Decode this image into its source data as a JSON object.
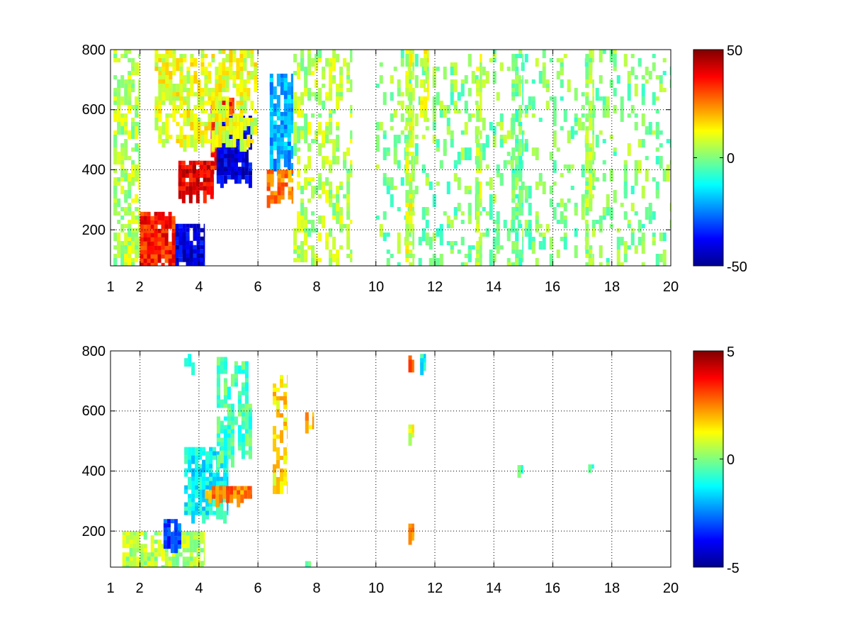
{
  "figure": {
    "background": "#ffffff"
  },
  "chart_data": [
    {
      "type": "heatmap",
      "title": "",
      "xlabel": "",
      "ylabel": "",
      "xlim": [
        1,
        20
      ],
      "ylim": [
        80,
        800
      ],
      "x_ticks": [
        1,
        2,
        4,
        6,
        8,
        10,
        12,
        14,
        16,
        18,
        20
      ],
      "x_tick_labels": [
        "1",
        "2",
        "4",
        "6",
        "8",
        "10",
        "12",
        "14",
        "16",
        "18",
        "20"
      ],
      "y_ticks": [
        200,
        400,
        600,
        800
      ],
      "y_tick_labels": [
        "200",
        "400",
        "600",
        "800"
      ],
      "grid": "dotted",
      "colormap": "jet",
      "clim": [
        -50,
        50
      ],
      "colorbar_ticks": [
        50,
        0,
        -50
      ],
      "colorbar_tick_labels": [
        "50",
        "0",
        "-50"
      ],
      "features": [
        {
          "x": [
            1.1,
            2.0
          ],
          "y": [
            80,
            800
          ],
          "value": 5,
          "coverage": 0.45
        },
        {
          "x": [
            2.0,
            3.2
          ],
          "y": [
            80,
            260
          ],
          "value": 35,
          "coverage": 0.85
        },
        {
          "x": [
            3.2,
            4.2
          ],
          "y": [
            80,
            220
          ],
          "value": -40,
          "coverage": 0.8
        },
        {
          "x": [
            3.3,
            4.5
          ],
          "y": [
            320,
            430
          ],
          "value": 40,
          "coverage": 0.9
        },
        {
          "x": [
            4.4,
            5.2
          ],
          "y": [
            400,
            640
          ],
          "value": 35,
          "coverage": 0.8
        },
        {
          "x": [
            4.6,
            5.8
          ],
          "y": [
            380,
            580
          ],
          "value": -40,
          "coverage": 0.8
        },
        {
          "x": [
            2.5,
            6.0
          ],
          "y": [
            500,
            800
          ],
          "value": 10,
          "coverage": 0.55
        },
        {
          "x": [
            6.4,
            7.2
          ],
          "y": [
            420,
            720
          ],
          "value": -20,
          "coverage": 0.65
        },
        {
          "x": [
            6.3,
            7.2
          ],
          "y": [
            310,
            400
          ],
          "value": 25,
          "coverage": 0.6
        },
        {
          "x": [
            7.2,
            9.2
          ],
          "y": [
            100,
            800
          ],
          "value": 5,
          "coverage": 0.3
        },
        {
          "x": [
            10.0,
            20.0
          ],
          "y": [
            80,
            800
          ],
          "value": 0,
          "coverage": 0.14
        },
        {
          "x": [
            11.0,
            11.3
          ],
          "y": [
            80,
            800
          ],
          "value": 8,
          "coverage": 0.55
        },
        {
          "x": [
            11.5,
            11.8
          ],
          "y": [
            600,
            800
          ],
          "value": 12,
          "coverage": 0.5
        },
        {
          "x": [
            13.4,
            13.6
          ],
          "y": [
            80,
            800
          ],
          "value": 6,
          "coverage": 0.45
        },
        {
          "x": [
            14.6,
            15.0
          ],
          "y": [
            80,
            800
          ],
          "value": -2,
          "coverage": 0.4
        },
        {
          "x": [
            17.1,
            17.4
          ],
          "y": [
            80,
            800
          ],
          "value": 3,
          "coverage": 0.55
        }
      ]
    },
    {
      "type": "heatmap",
      "title": "",
      "xlabel": "",
      "ylabel": "",
      "xlim": [
        1,
        20
      ],
      "ylim": [
        80,
        800
      ],
      "x_ticks": [
        1,
        2,
        4,
        6,
        8,
        10,
        12,
        14,
        16,
        18,
        20
      ],
      "x_tick_labels": [
        "1",
        "2",
        "4",
        "6",
        "8",
        "10",
        "12",
        "14",
        "16",
        "18",
        "20"
      ],
      "y_ticks": [
        200,
        400,
        600,
        800
      ],
      "y_tick_labels": [
        "200",
        "400",
        "600",
        "800"
      ],
      "grid": "dotted",
      "colormap": "jet",
      "clim": [
        -5,
        5
      ],
      "colorbar_ticks": [
        5,
        0,
        -5
      ],
      "colorbar_tick_labels": [
        "5",
        "0",
        "-5"
      ],
      "features": [
        {
          "x": [
            1.4,
            4.2
          ],
          "y": [
            80,
            200
          ],
          "value": 0.5,
          "coverage": 0.55
        },
        {
          "x": [
            2.8,
            3.4
          ],
          "y": [
            150,
            240
          ],
          "value": -3,
          "coverage": 0.6
        },
        {
          "x": [
            3.5,
            5.0
          ],
          "y": [
            260,
            480
          ],
          "value": -1.2,
          "coverage": 0.7
        },
        {
          "x": [
            4.2,
            5.8
          ],
          "y": [
            320,
            350
          ],
          "value": 2.5,
          "coverage": 0.7
        },
        {
          "x": [
            4.6,
            5.8
          ],
          "y": [
            450,
            780
          ],
          "value": -0.5,
          "coverage": 0.5
        },
        {
          "x": [
            3.5,
            4.0
          ],
          "y": [
            740,
            790
          ],
          "value": -1,
          "coverage": 0.4
        },
        {
          "x": [
            6.5,
            7.0
          ],
          "y": [
            330,
            720
          ],
          "value": 1.5,
          "coverage": 0.45
        },
        {
          "x": [
            7.6,
            7.9
          ],
          "y": [
            540,
            610
          ],
          "value": 2,
          "coverage": 0.45
        },
        {
          "x": [
            7.6,
            7.8
          ],
          "y": [
            85,
            100
          ],
          "value": 0,
          "coverage": 1.0
        },
        {
          "x": [
            11.1,
            11.3
          ],
          "y": [
            515,
            555
          ],
          "value": 1,
          "coverage": 0.9
        },
        {
          "x": [
            11.1,
            11.3
          ],
          "y": [
            190,
            225
          ],
          "value": 2,
          "coverage": 0.9
        },
        {
          "x": [
            11.1,
            11.3
          ],
          "y": [
            770,
            785
          ],
          "value": 3,
          "coverage": 0.9
        },
        {
          "x": [
            11.5,
            11.7
          ],
          "y": [
            760,
            790
          ],
          "value": -1,
          "coverage": 0.9
        },
        {
          "x": [
            14.8,
            15.0
          ],
          "y": [
            410,
            420
          ],
          "value": -0.5,
          "coverage": 1.0
        },
        {
          "x": [
            17.2,
            17.4
          ],
          "y": [
            415,
            422
          ],
          "value": -0.8,
          "coverage": 1.0
        }
      ]
    }
  ]
}
